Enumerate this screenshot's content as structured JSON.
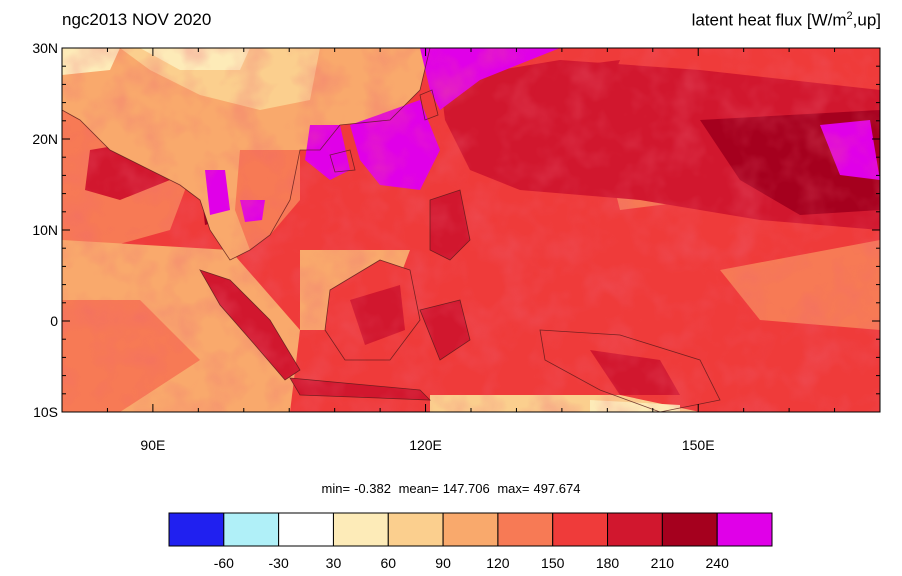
{
  "header": {
    "left_title": "ngc2013 NOV 2020",
    "right_title_main": "latent heat flux [W/m",
    "right_title_sup": "2",
    "right_title_tail": ",up]"
  },
  "map": {
    "lat_range": [
      -10,
      30
    ],
    "lon_range": [
      80,
      170
    ],
    "lat_ticks": [
      "30N",
      "20N",
      "10N",
      "0",
      "10S"
    ],
    "lon_ticks": [
      "90E",
      "120E",
      "150E"
    ]
  },
  "stats": {
    "min_label": "min=",
    "min_value": "-0.382",
    "mean_label": "mean=",
    "mean_value": "147.706",
    "max_label": "max=",
    "max_value": "497.674"
  },
  "colorbar": {
    "labels": [
      "-60",
      "-30",
      "30",
      "60",
      "90",
      "120",
      "150",
      "180",
      "210",
      "240"
    ],
    "colors": [
      "#2020f0",
      "#b0f0f8",
      "#ffffff",
      "#fdebb8",
      "#fbcf8e",
      "#f9a96c",
      "#f77a55",
      "#ef3b3a",
      "#d1172e",
      "#a5001e",
      "#e000e8"
    ]
  }
}
